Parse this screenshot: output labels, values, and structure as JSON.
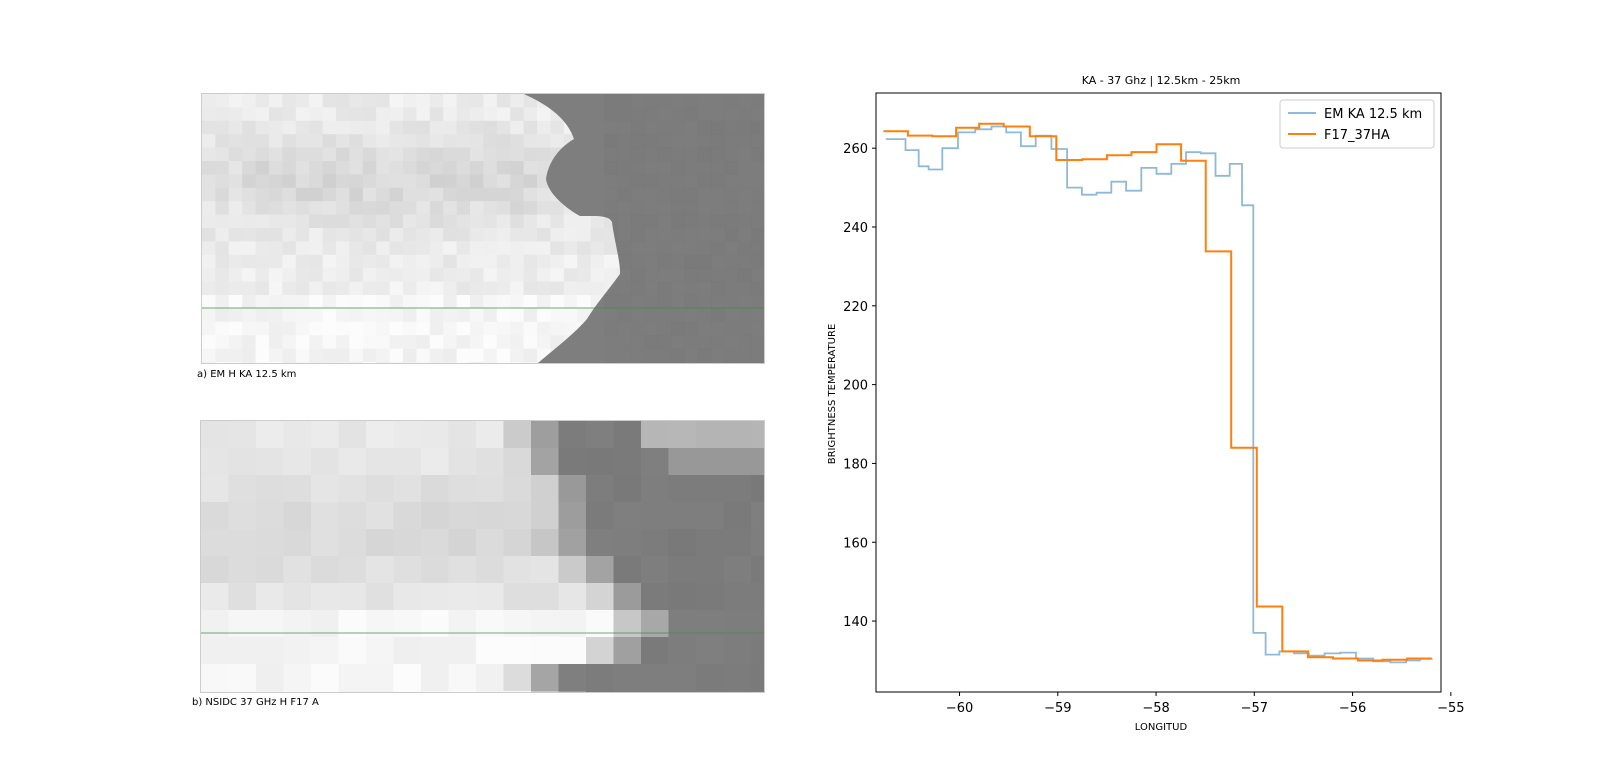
{
  "images": {
    "panel_a": {
      "caption": "a) EM H KA 12.5 km"
    },
    "panel_b": {
      "caption": "b) NSIDC 37 GHz H F17 A"
    }
  },
  "colors": {
    "em_series": "#8fb9d8",
    "f17_series": "#ff7f0e",
    "transect_line": "#4a8a4a",
    "ocean_gray": "#808080"
  },
  "chart_data": {
    "type": "line",
    "title": "KA - 37 Ghz | 12.5km - 25km",
    "xlabel": "LONGITUD",
    "ylabel": "BRIGHTNESS TEMPERATURE",
    "xlim": [
      -60.85,
      -55.1
    ],
    "ylim": [
      122,
      274
    ],
    "xticks": [
      -60,
      -59,
      -58,
      -57,
      -56,
      -55
    ],
    "yticks": [
      140,
      160,
      180,
      200,
      220,
      240,
      260
    ],
    "legend_position": "top-right",
    "step": true,
    "series": [
      {
        "name": "EM KA 12.5 km",
        "color": "#8fb9d8",
        "points": [
          [
            -60.65,
            262.3
          ],
          [
            -60.45,
            259.5
          ],
          [
            -60.38,
            255.4
          ],
          [
            -60.25,
            254.6
          ],
          [
            -60.1,
            260.0
          ],
          [
            -59.93,
            264.0
          ],
          [
            -59.75,
            264.8
          ],
          [
            -59.6,
            265.5
          ],
          [
            -59.45,
            264.0
          ],
          [
            -59.3,
            260.5
          ],
          [
            -59.15,
            263.2
          ],
          [
            -58.98,
            259.8
          ],
          [
            -58.83,
            250.0
          ],
          [
            -58.68,
            248.2
          ],
          [
            -58.53,
            248.7
          ],
          [
            -58.38,
            251.5
          ],
          [
            -58.23,
            249.2
          ],
          [
            -58.07,
            255.0
          ],
          [
            -57.92,
            253.5
          ],
          [
            -57.77,
            256.0
          ],
          [
            -57.62,
            259.0
          ],
          [
            -57.47,
            258.7
          ],
          [
            -57.32,
            253.0
          ],
          [
            -57.18,
            256.0
          ],
          [
            -57.07,
            245.5
          ],
          [
            -56.95,
            137.0
          ],
          [
            -56.82,
            131.5
          ],
          [
            -56.67,
            132.3
          ],
          [
            -56.52,
            131.8
          ],
          [
            -56.37,
            131.2
          ],
          [
            -56.2,
            131.8
          ],
          [
            -56.05,
            132.0
          ],
          [
            -55.88,
            130.5
          ],
          [
            -55.7,
            129.8
          ],
          [
            -55.53,
            129.5
          ],
          [
            -55.38,
            130.0
          ],
          [
            -55.25,
            130.4
          ]
        ]
      },
      {
        "name": "F17_37HA",
        "color": "#ff7f0e",
        "points": [
          [
            -60.65,
            264.3
          ],
          [
            -60.4,
            263.2
          ],
          [
            -60.15,
            263.0
          ],
          [
            -59.92,
            265.2
          ],
          [
            -59.68,
            266.2
          ],
          [
            -59.42,
            265.5
          ],
          [
            -59.15,
            263.0
          ],
          [
            -58.88,
            257.0
          ],
          [
            -58.62,
            257.2
          ],
          [
            -58.38,
            258.2
          ],
          [
            -58.12,
            259.0
          ],
          [
            -57.87,
            261.0
          ],
          [
            -57.62,
            256.8
          ],
          [
            -57.37,
            233.8
          ],
          [
            -57.1,
            184.0
          ],
          [
            -56.85,
            143.7
          ],
          [
            -56.58,
            132.3
          ],
          [
            -56.33,
            130.8
          ],
          [
            -56.07,
            130.5
          ],
          [
            -55.82,
            130.0
          ],
          [
            -55.57,
            130.2
          ],
          [
            -55.32,
            130.5
          ]
        ]
      }
    ]
  }
}
